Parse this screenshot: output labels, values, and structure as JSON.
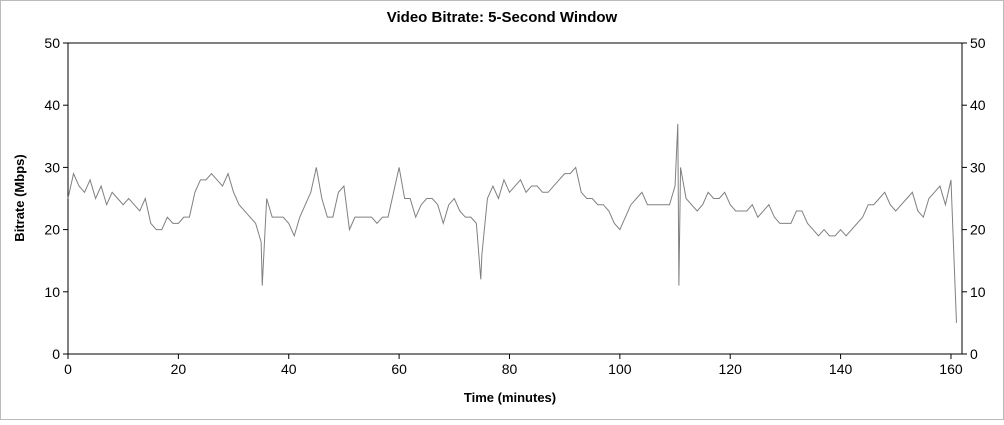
{
  "chart_data": {
    "type": "line",
    "title": "Video Bitrate: 5-Second Window",
    "xlabel": "Time (minutes)",
    "ylabel": "Bitrate (Mbps)",
    "x": [
      0,
      1,
      2,
      3,
      4,
      5,
      6,
      7,
      8,
      9,
      10,
      11,
      12,
      13,
      14,
      15,
      16,
      17,
      18,
      19,
      20,
      21,
      22,
      23,
      24,
      25,
      26,
      27,
      28,
      29,
      30,
      31,
      32,
      33,
      34,
      35,
      35.2,
      36,
      37,
      38,
      39,
      40,
      41,
      42,
      43,
      44,
      45,
      46,
      47,
      48,
      49,
      50,
      51,
      52,
      53,
      54,
      55,
      56,
      57,
      58,
      59,
      60,
      61,
      62,
      63,
      64,
      65,
      66,
      67,
      68,
      69,
      70,
      71,
      72,
      73,
      74,
      74.8,
      75,
      76,
      77,
      78,
      79,
      80,
      81,
      82,
      83,
      84,
      85,
      86,
      87,
      88,
      89,
      90,
      91,
      92,
      93,
      94,
      95,
      96,
      97,
      98,
      99,
      100,
      101,
      102,
      103,
      104,
      105,
      106,
      107,
      108,
      109,
      110,
      110.5,
      110.7,
      111,
      112,
      113,
      114,
      115,
      116,
      117,
      118,
      119,
      120,
      121,
      122,
      123,
      124,
      125,
      126,
      127,
      128,
      129,
      130,
      131,
      132,
      133,
      134,
      135,
      136,
      137,
      138,
      139,
      140,
      141,
      142,
      143,
      144,
      145,
      146,
      147,
      148,
      149,
      150,
      151,
      152,
      153,
      154,
      155,
      156,
      157,
      158,
      159,
      160,
      161
    ],
    "series": [
      {
        "name": "Bitrate",
        "color": "#808080",
        "values": [
          25,
          29,
          27,
          26,
          28,
          25,
          27,
          24,
          26,
          25,
          24,
          25,
          24,
          23,
          25,
          21,
          20,
          20,
          22,
          21,
          21,
          22,
          22,
          26,
          28,
          28,
          29,
          28,
          27,
          29,
          26,
          24,
          23,
          22,
          21,
          18,
          11,
          25,
          22,
          22,
          22,
          21,
          19,
          22,
          24,
          26,
          30,
          25,
          22,
          22,
          26,
          27,
          20,
          22,
          22,
          22,
          22,
          21,
          22,
          22,
          26,
          30,
          25,
          25,
          22,
          24,
          25,
          25,
          24,
          21,
          24,
          25,
          23,
          22,
          22,
          21,
          12,
          16,
          25,
          27,
          25,
          28,
          26,
          27,
          28,
          26,
          27,
          27,
          26,
          26,
          27,
          28,
          29,
          29,
          30,
          26,
          25,
          25,
          24,
          24,
          23,
          21,
          20,
          22,
          24,
          25,
          26,
          24,
          24,
          24,
          24,
          24,
          27,
          37,
          11,
          30,
          25,
          24,
          23,
          24,
          26,
          25,
          25,
          26,
          24,
          23,
          23,
          23,
          24,
          22,
          23,
          24,
          22,
          21,
          21,
          21,
          23,
          23,
          21,
          20,
          19,
          20,
          19,
          19,
          20,
          19,
          20,
          21,
          22,
          24,
          24,
          25,
          26,
          24,
          23,
          24,
          25,
          26,
          23,
          22,
          25,
          26,
          27,
          24,
          28,
          5
        ]
      }
    ],
    "xlim": [
      0,
      162
    ],
    "ylim": [
      0,
      50
    ],
    "xticks": [
      0,
      20,
      40,
      60,
      80,
      100,
      120,
      140,
      160
    ],
    "yticks": [
      0,
      10,
      20,
      30,
      40,
      50
    ]
  }
}
